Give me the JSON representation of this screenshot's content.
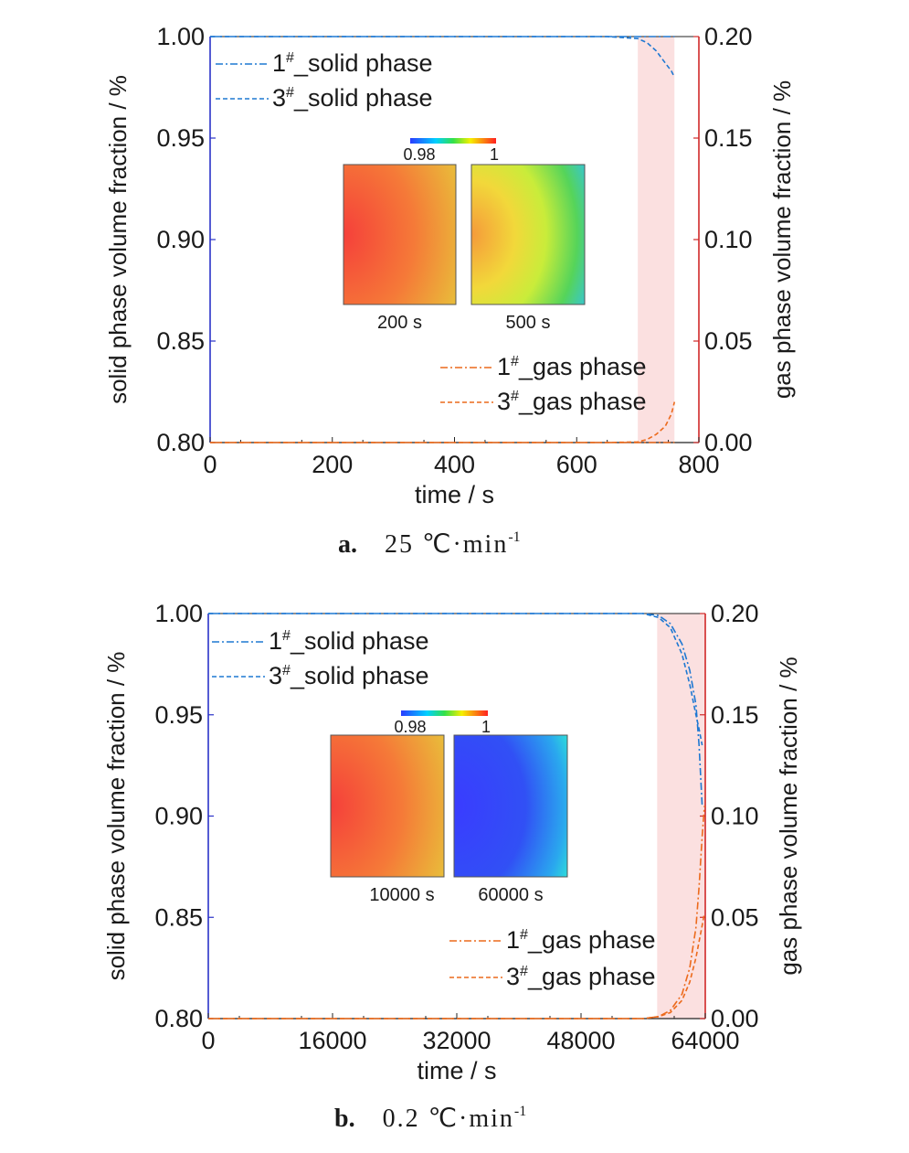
{
  "chart_data": [
    {
      "type": "line",
      "caption_letter": "a.",
      "caption_text": "25 ℃·min",
      "caption_sup": "-1",
      "xlabel": "time / s",
      "ylabel": "solid phase volume fraction / %",
      "y2label": "gas phase volume fraction / %",
      "xlim": [
        0,
        800
      ],
      "ylim": [
        0.8,
        1.0
      ],
      "y2lim": [
        0.0,
        0.2
      ],
      "xticks": [
        "0",
        "200",
        "400",
        "600",
        "800"
      ],
      "yticks": [
        "0.80",
        "0.85",
        "0.90",
        "0.95",
        "1.00"
      ],
      "y2ticks": [
        "0.00",
        "0.05",
        "0.10",
        "0.15",
        "0.20"
      ],
      "highlight_x": [
        700,
        760
      ],
      "colorbar": {
        "min": "0.98",
        "max": "1"
      },
      "insets": [
        {
          "label": "200 s",
          "field": "hot"
        },
        {
          "label": "500 s",
          "field": "cool"
        }
      ],
      "series": [
        {
          "name": "1",
          "name_sup": "#",
          "name_rest": "_solid phase",
          "axis": "left",
          "style": "dashdot",
          "color": "#1e78d2",
          "x": [
            0,
            650,
            700,
            730,
            750,
            760
          ],
          "y": [
            1.0,
            1.0,
            1.0,
            1.0,
            1.0,
            1.0
          ]
        },
        {
          "name": "3",
          "name_sup": "#",
          "name_rest": "_solid phase",
          "axis": "left",
          "style": "dashed",
          "color": "#1e78d2",
          "x": [
            0,
            650,
            700,
            715,
            730,
            745,
            755,
            760
          ],
          "y": [
            1.0,
            1.0,
            0.999,
            0.997,
            0.993,
            0.987,
            0.983,
            0.98
          ]
        },
        {
          "name": "1",
          "name_sup": "#",
          "name_rest": "_gas phase",
          "axis": "right",
          "style": "dashdot",
          "color": "#ec6a1c",
          "x": [
            0,
            650,
            700,
            730,
            750,
            760
          ],
          "y": [
            0.0,
            0.0,
            0.0,
            0.0,
            0.0,
            0.0
          ]
        },
        {
          "name": "3",
          "name_sup": "#",
          "name_rest": "_gas phase",
          "axis": "right",
          "style": "dashed",
          "color": "#ec6a1c",
          "x": [
            0,
            650,
            700,
            715,
            730,
            745,
            755,
            760
          ],
          "y": [
            0.0,
            0.0,
            0.0003,
            0.0015,
            0.004,
            0.008,
            0.014,
            0.02
          ]
        }
      ]
    },
    {
      "type": "line",
      "caption_letter": "b.",
      "caption_text": "0.2 ℃·min",
      "caption_sup": "-1",
      "xlabel": "time / s",
      "ylabel": "solid phase volume fraction / %",
      "y2label": "gas phase volume fraction / %",
      "xlim": [
        0,
        64000
      ],
      "ylim": [
        0.8,
        1.0
      ],
      "y2lim": [
        0.0,
        0.2
      ],
      "xticks": [
        "0",
        "16000",
        "32000",
        "48000",
        "64000"
      ],
      "yticks": [
        "0.80",
        "0.85",
        "0.90",
        "0.95",
        "1.00"
      ],
      "y2ticks": [
        "0.00",
        "0.05",
        "0.10",
        "0.15",
        "0.20"
      ],
      "highlight_x": [
        57800,
        64000
      ],
      "colorbar": {
        "min": "0.98",
        "max": "1"
      },
      "insets": [
        {
          "label": "10000 s",
          "field": "hot"
        },
        {
          "label": "60000 s",
          "field": "cold"
        }
      ],
      "series": [
        {
          "name": "1",
          "name_sup": "#",
          "name_rest": "_solid phase",
          "axis": "left",
          "style": "dashdot",
          "color": "#1e78d2",
          "x": [
            0,
            56000,
            58000,
            59500,
            61000,
            62000,
            62800,
            63200,
            63600
          ],
          "y": [
            1.0,
            1.0,
            0.999,
            0.995,
            0.985,
            0.972,
            0.955,
            0.935,
            0.905
          ]
        },
        {
          "name": "3",
          "name_sup": "#",
          "name_rest": "_solid phase",
          "axis": "left",
          "style": "dashed",
          "color": "#1e78d2",
          "x": [
            0,
            56000,
            58000,
            59500,
            61000,
            62000,
            62800,
            63200,
            63600
          ],
          "y": [
            1.0,
            1.0,
            0.998,
            0.993,
            0.98,
            0.965,
            0.95,
            0.943,
            0.935
          ]
        },
        {
          "name": "1",
          "name_sup": "#",
          "name_rest": "_gas phase",
          "axis": "right",
          "style": "dashdot",
          "color": "#ec6a1c",
          "x": [
            0,
            56000,
            58000,
            59500,
            61000,
            62000,
            62800,
            63200,
            63600,
            63900
          ],
          "y": [
            0.0,
            0.0,
            0.001,
            0.004,
            0.012,
            0.025,
            0.045,
            0.065,
            0.09,
            0.105
          ]
        },
        {
          "name": "3",
          "name_sup": "#",
          "name_rest": "_gas phase",
          "axis": "right",
          "style": "dashed",
          "color": "#ec6a1c",
          "x": [
            0,
            56000,
            58000,
            59500,
            61000,
            62000,
            62800,
            63200,
            63600,
            63900
          ],
          "y": [
            0.0,
            0.0,
            0.001,
            0.003,
            0.009,
            0.018,
            0.03,
            0.038,
            0.046,
            0.052
          ]
        }
      ]
    }
  ]
}
